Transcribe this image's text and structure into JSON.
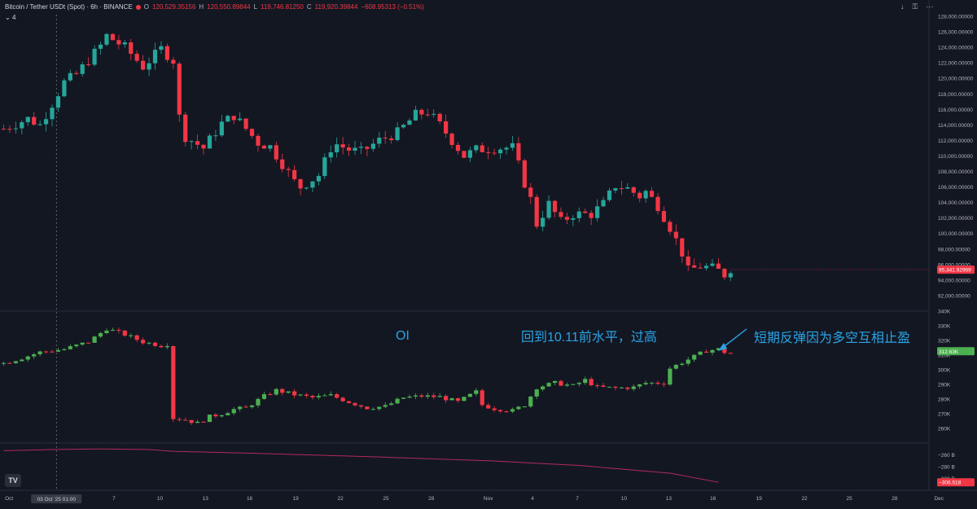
{
  "header": {
    "symbol": "Bitcoin / Tether USDt (Spot) · 6h · BINANCE",
    "open_label": "O",
    "open": "120,529.35156",
    "high_label": "H",
    "high": "120,550.89844",
    "low_label": "L",
    "low": "119,746.81250",
    "close_label": "C",
    "close": "119,920.39844",
    "change": "−608.95313 (−0.51%)",
    "indicator_toggle": "4"
  },
  "top_icons": [
    "arrow-down-icon",
    "lock-icon",
    "more-icon"
  ],
  "annotations": {
    "oi_label": "OI",
    "note_left": "回到10.11前水平，过高",
    "note_right": "短期反弹因为多空互相止盈"
  },
  "logo": "TV",
  "colors": {
    "up": "#26a69a",
    "down": "#f23645",
    "oi_up": "#4caf50",
    "oi_down": "#f23645",
    "line": "#b12a5a",
    "annotation": "#2aa3e6",
    "background": "#131722"
  },
  "chart_data": [
    {
      "type": "candlestick",
      "title": "Bitcoin / Tether USDt (Spot) · 6h · BINANCE",
      "ylim": [
        90000,
        128000
      ],
      "y_ticks": [
        92000,
        94000,
        96000,
        98000,
        100000,
        102000,
        104000,
        106000,
        108000,
        110000,
        112000,
        114000,
        116000,
        118000,
        120000,
        122000,
        124000,
        126000,
        128000
      ],
      "y_tick_labels": [
        "92,000.00000",
        "94,000.00000",
        "96,000.00000",
        "98,000.00000",
        "100,000.00000",
        "102,000.00000",
        "104,000.00000",
        "106,000.00000",
        "108,000.00000",
        "110,000.00000",
        "112,000.00000",
        "114,000.00000",
        "116,000.00000",
        "118,000.00000",
        "120,000.00000",
        "122,000.00000",
        "124,000.00000",
        "126,000.00000",
        "128,000.00000"
      ],
      "last_price_label": "95,341.92969",
      "last_price": 95342,
      "path": [
        [
          0,
          113500
        ],
        [
          4,
          114800
        ],
        [
          6,
          114000
        ],
        [
          10,
          119500
        ],
        [
          12,
          120500
        ],
        [
          16,
          124200
        ],
        [
          17,
          125500
        ],
        [
          20,
          124000
        ],
        [
          23,
          121500
        ],
        [
          26,
          123800
        ],
        [
          28,
          122300
        ],
        [
          29,
          115000
        ],
        [
          30,
          112500
        ],
        [
          33,
          111000
        ],
        [
          36,
          114200
        ],
        [
          38,
          115200
        ],
        [
          40,
          113500
        ],
        [
          42,
          111700
        ],
        [
          44,
          111200
        ],
        [
          46,
          109000
        ],
        [
          48,
          106700
        ],
        [
          49,
          106000
        ],
        [
          52,
          107500
        ],
        [
          54,
          111000
        ],
        [
          55,
          111500
        ],
        [
          57,
          110800
        ],
        [
          59,
          110500
        ],
        [
          62,
          112000
        ],
        [
          65,
          113000
        ],
        [
          68,
          115300
        ],
        [
          70,
          115700
        ],
        [
          72,
          114000
        ],
        [
          74,
          112000
        ],
        [
          76,
          110000
        ],
        [
          78,
          110800
        ],
        [
          81,
          111000
        ],
        [
          84,
          111100
        ],
        [
          86,
          106500
        ],
        [
          87,
          104400
        ],
        [
          88,
          101200
        ],
        [
          90,
          103800
        ],
        [
          92,
          101500
        ],
        [
          94,
          102500
        ],
        [
          97,
          102500
        ],
        [
          99,
          103800
        ],
        [
          101,
          106200
        ],
        [
          103,
          105800
        ],
        [
          105,
          104800
        ],
        [
          106,
          105400
        ],
        [
          108,
          103600
        ],
        [
          110,
          100800
        ],
        [
          112,
          97500
        ],
        [
          113,
          95200
        ],
        [
          115,
          95800
        ],
        [
          117,
          95500
        ],
        [
          118,
          95200
        ],
        [
          119,
          94700
        ],
        [
          120,
          95500
        ]
      ]
    },
    {
      "type": "candlestick",
      "title": "OI",
      "ylim": [
        250000,
        340000
      ],
      "y_ticks": [
        260000,
        270000,
        280000,
        290000,
        300000,
        310000,
        320000,
        330000,
        340000
      ],
      "y_tick_labels": [
        "260K",
        "270K",
        "280K",
        "290K",
        "300K",
        "310K",
        "320K",
        "330K",
        "340K"
      ],
      "last_value_label": "312.63K",
      "last_value": 312630,
      "path": [
        [
          0,
          304500
        ],
        [
          3,
          308000
        ],
        [
          6,
          312000
        ],
        [
          10,
          314000
        ],
        [
          14,
          319000
        ],
        [
          17,
          328000
        ],
        [
          20,
          324000
        ],
        [
          23,
          319000
        ],
        [
          26,
          316500
        ],
        [
          27,
          317500
        ],
        [
          28,
          267000
        ],
        [
          30,
          266000
        ],
        [
          32,
          263500
        ],
        [
          34,
          268000
        ],
        [
          36,
          270000
        ],
        [
          38,
          273000
        ],
        [
          40,
          274000
        ],
        [
          43,
          282000
        ],
        [
          45,
          286000
        ],
        [
          48,
          283000
        ],
        [
          51,
          281000
        ],
        [
          54,
          282500
        ],
        [
          57,
          278000
        ],
        [
          60,
          274000
        ],
        [
          63,
          275000
        ],
        [
          66,
          281000
        ],
        [
          69,
          282000
        ],
        [
          72,
          281500
        ],
        [
          75,
          278000
        ],
        [
          78,
          285000
        ],
        [
          79,
          276000
        ],
        [
          81,
          273500
        ],
        [
          84,
          272000
        ],
        [
          86,
          276000
        ],
        [
          88,
          288000
        ],
        [
          91,
          291000
        ],
        [
          94,
          289000
        ],
        [
          96,
          293000
        ],
        [
          98,
          288000
        ],
        [
          101,
          287500
        ],
        [
          104,
          288000
        ],
        [
          106,
          291000
        ],
        [
          109,
          291000
        ],
        [
          110,
          301000
        ],
        [
          112,
          305000
        ],
        [
          114,
          309000
        ],
        [
          116,
          313000
        ],
        [
          118,
          314000
        ],
        [
          119,
          312000
        ],
        [
          120,
          311000
        ]
      ]
    },
    {
      "type": "line",
      "title": "",
      "ylim": [
        -320,
        -240
      ],
      "y_ticks": [
        -260,
        -280,
        -300
      ],
      "y_tick_labels": [
        "−260 B",
        "−280 B",
        "−300 B"
      ],
      "last_value_label": "−306.518",
      "last_value": -306.518,
      "points": [
        [
          0,
          -253
        ],
        [
          8,
          -251
        ],
        [
          16,
          -250
        ],
        [
          24,
          -251
        ],
        [
          28,
          -254
        ],
        [
          40,
          -257
        ],
        [
          60,
          -263
        ],
        [
          80,
          -270
        ],
        [
          95,
          -278
        ],
        [
          110,
          -291
        ],
        [
          118,
          -306.5
        ]
      ]
    }
  ],
  "x_axis": {
    "ticks": [
      {
        "label": "Oct",
        "idx": 0.9
      },
      {
        "label": "7",
        "idx": 18.2
      },
      {
        "label": "10",
        "idx": 25.8
      },
      {
        "label": "13",
        "idx": 33.3
      },
      {
        "label": "16",
        "idx": 40.6
      },
      {
        "label": "19",
        "idx": 48.2
      },
      {
        "label": "22",
        "idx": 55.6
      },
      {
        "label": "25",
        "idx": 63.1
      },
      {
        "label": "28",
        "idx": 70.6
      },
      {
        "label": "Nov",
        "idx": 80.0
      },
      {
        "label": "4",
        "idx": 87.3
      },
      {
        "label": "7",
        "idx": 94.7
      },
      {
        "label": "10",
        "idx": 102.4
      },
      {
        "label": "13",
        "idx": 109.8
      },
      {
        "label": "16",
        "idx": 117.1
      },
      {
        "label": "19",
        "idx": 124.7
      },
      {
        "label": "22",
        "idx": 132.2
      },
      {
        "label": "25",
        "idx": 139.6
      },
      {
        "label": "28",
        "idx": 147.1
      },
      {
        "label": "Dec",
        "idx": 154.4
      }
    ],
    "crosshair_label": "03 Oct '25   01:00",
    "crosshair_idx": 8.7
  }
}
